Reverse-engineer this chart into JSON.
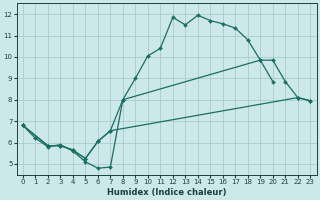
{
  "xlabel": "Humidex (Indice chaleur)",
  "bg_color": "#cce8e8",
  "grid_color": "#aacccc",
  "line_color": "#1a6e62",
  "xlim": [
    -0.5,
    23.5
  ],
  "ylim": [
    4.5,
    12.5
  ],
  "yticks": [
    5,
    6,
    7,
    8,
    9,
    10,
    11,
    12
  ],
  "xticks": [
    0,
    1,
    2,
    3,
    4,
    5,
    6,
    7,
    8,
    9,
    10,
    11,
    12,
    13,
    14,
    15,
    16,
    17,
    18,
    19,
    20,
    21,
    22,
    23
  ],
  "curve1_x": [
    0,
    1,
    2,
    3,
    4,
    5,
    6,
    7,
    8,
    9,
    10,
    11,
    12,
    13,
    14,
    15,
    16,
    17,
    18,
    19,
    20
  ],
  "curve1_y": [
    6.8,
    6.2,
    5.8,
    5.9,
    5.6,
    5.1,
    4.8,
    4.85,
    8.0,
    9.0,
    10.05,
    10.4,
    11.85,
    11.5,
    11.95,
    11.7,
    11.55,
    11.35,
    10.8,
    9.85,
    8.85
  ],
  "curve2_x": [
    0,
    2,
    3,
    4,
    5,
    6,
    7,
    8,
    19,
    20,
    21,
    22,
    23
  ],
  "curve2_y": [
    6.8,
    5.85,
    5.85,
    5.65,
    5.25,
    6.05,
    6.55,
    8.0,
    9.85,
    9.85,
    8.85,
    8.1,
    7.95
  ],
  "curve3_x": [
    0,
    2,
    3,
    4,
    5,
    6,
    7,
    22,
    23
  ],
  "curve3_y": [
    6.8,
    5.85,
    5.85,
    5.65,
    5.25,
    6.05,
    6.55,
    8.1,
    7.95
  ],
  "xlabel_fontsize": 6.0,
  "tick_fontsize": 5.0
}
